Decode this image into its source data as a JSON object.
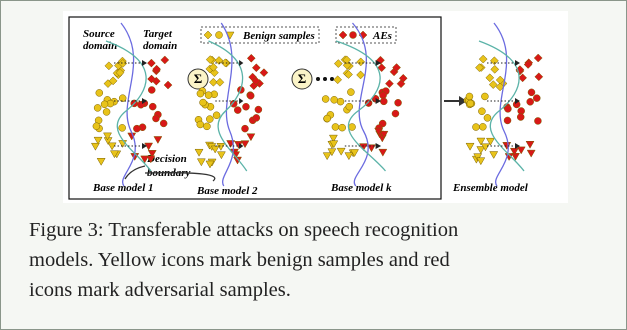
{
  "figure": {
    "labels": {
      "source_domain": [
        "Source",
        "domain"
      ],
      "target_domain": [
        "Target",
        "domain"
      ],
      "decision_boundary": [
        "Decision",
        "boundary"
      ]
    },
    "legend": {
      "benign": "Benign samples",
      "aes": "AEs"
    },
    "sum_symbols": [
      "Σ",
      "Σ"
    ],
    "panels": [
      "Base model 1",
      "Base model 2",
      "Base model k",
      "Ensemble model"
    ]
  },
  "caption": {
    "lines": [
      "Figure 3: Transferable attacks on speech recognition",
      "models. Yellow icons mark benign samples and red",
      "icons mark adversarial samples."
    ]
  }
}
